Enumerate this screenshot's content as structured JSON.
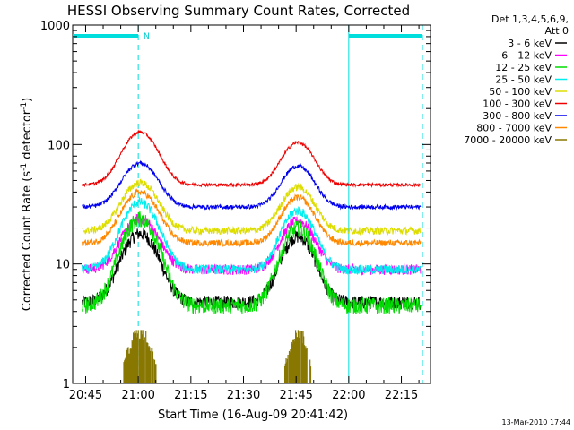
{
  "chart_data": {
    "type": "line",
    "title": "HESSI Observing Summary Count Rates, Corrected",
    "xlabel": "Start Time (16-Aug-09 20:41:42)",
    "ylabel_main": "Corrected Count Rate (s",
    "ylabel_sup1": "-1",
    "ylabel_mid": " detector",
    "ylabel_sup2": "-1",
    "ylabel_end": ")",
    "yscale": "log",
    "ylim": [
      1,
      1000
    ],
    "xlim_minutes": [
      -3.7,
      98.3
    ],
    "x_ticks": [
      "20:45",
      "21:00",
      "21:15",
      "21:30",
      "21:45",
      "22:00",
      "22:15"
    ],
    "x_tick_minutes": [
      0,
      15,
      30,
      45,
      60,
      75,
      90
    ],
    "y_ticks": [
      "1",
      "10",
      "100",
      "1000"
    ],
    "y_tick_values": [
      1,
      10,
      100,
      1000
    ],
    "legend_header_1": "Det 1,3,4,5,6,9,",
    "legend_header_2": "Att 0",
    "legend_placement": "right",
    "footer_date": "13-Mar-2010 17:44",
    "night_flag_label": "N",
    "night_intervals_minutes": [
      [
        -3.7,
        15
      ],
      [
        75,
        96
      ]
    ],
    "series": [
      {
        "name": "3 - 6 keV",
        "color": "#000000",
        "base": 4.8,
        "peak1": 18,
        "peak2": 17,
        "noise": 0.13
      },
      {
        "name": "6 - 12 keV",
        "color": "#ff00ff",
        "base": 9.0,
        "peak1": 24,
        "peak2": 23,
        "noise": 0.1
      },
      {
        "name": "12 - 25 keV",
        "color": "#00dd00",
        "base": 4.5,
        "peak1": 24,
        "peak2": 20,
        "noise": 0.16
      },
      {
        "name": "25 - 50 keV",
        "color": "#00eeee",
        "base": 9.0,
        "peak1": 33,
        "peak2": 28,
        "noise": 0.09
      },
      {
        "name": "50 - 100 keV",
        "color": "#dddd00",
        "base": 19.0,
        "peak1": 48,
        "peak2": 44,
        "noise": 0.07
      },
      {
        "name": "100 - 300 keV",
        "color": "#ee0000",
        "base": 46.0,
        "peak1": 127,
        "peak2": 104,
        "noise": 0.03
      },
      {
        "name": "300 - 800 keV",
        "color": "#0000ee",
        "base": 30.0,
        "peak1": 70,
        "peak2": 66,
        "noise": 0.04
      },
      {
        "name": "800 - 7000 keV",
        "color": "#ff8800",
        "base": 15.0,
        "peak1": 40,
        "peak2": 36,
        "noise": 0.06
      },
      {
        "name": "7000 - 20000 keV",
        "color": "#887700",
        "base": 1.0,
        "peak1": 2.8,
        "peak2": 2.7,
        "noise": 0.0
      }
    ]
  }
}
